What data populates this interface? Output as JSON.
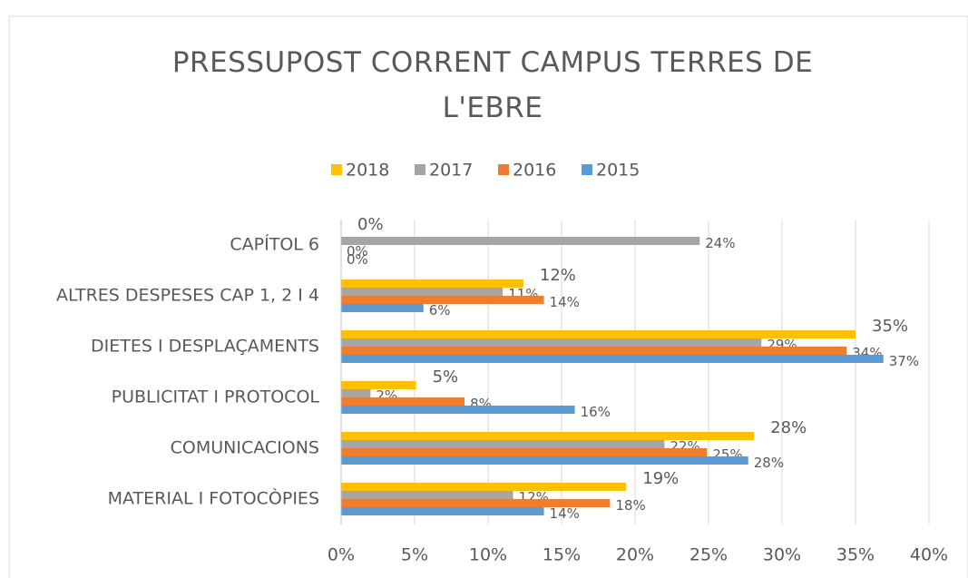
{
  "chart_data": {
    "type": "hbar",
    "title": "PRESSUPOST CORRENT CAMPUS TERRES DE L'EBRE",
    "categories": [
      "CAPÍTOL 6",
      "ALTRES DESPESES CAP 1,  2 I 4",
      "DIETES I DESPLAÇAMENTS",
      "PUBLICITAT I PROTOCOL",
      "COMUNICACIONS",
      "MATERIAL I FOTOCÒPIES"
    ],
    "series": [
      {
        "name": "2018",
        "color": "#ffc000",
        "values": [
          0,
          12.4,
          35.0,
          5.1,
          28.1,
          19.4
        ],
        "value_labels": [
          "0%",
          "12%",
          "35%",
          "5%",
          "28%",
          "19%"
        ]
      },
      {
        "name": "2017",
        "color": "#a5a5a5",
        "values": [
          24.4,
          11.0,
          28.6,
          2.0,
          22.0,
          11.7
        ],
        "value_labels": [
          "24%",
          "11%",
          "29%",
          "2%",
          "22%",
          "12%"
        ]
      },
      {
        "name": "2016",
        "color": "#ed7d31",
        "values": [
          0,
          13.8,
          34.4,
          8.4,
          24.9,
          18.3
        ],
        "value_labels": [
          "0%",
          "14%",
          "34%",
          "8%",
          "25%",
          "18%"
        ]
      },
      {
        "name": "2015",
        "color": "#5b9bd5",
        "values": [
          0,
          5.6,
          36.9,
          15.9,
          27.7,
          13.8
        ],
        "value_labels": [
          "0%",
          "6%",
          "37%",
          "16%",
          "28%",
          "14%"
        ]
      }
    ],
    "xlim": [
      0,
      40
    ],
    "xticks": [
      {
        "value": 0,
        "label": "0%"
      },
      {
        "value": 5,
        "label": "5%"
      },
      {
        "value": 10,
        "label": "10%"
      },
      {
        "value": 15,
        "label": "15%"
      },
      {
        "value": 20,
        "label": "20%"
      },
      {
        "value": 25,
        "label": "25%"
      },
      {
        "value": 30,
        "label": "30%"
      },
      {
        "value": 35,
        "label": "35%"
      },
      {
        "value": 40,
        "label": "40%"
      }
    ],
    "grid": true,
    "legend": "top"
  }
}
